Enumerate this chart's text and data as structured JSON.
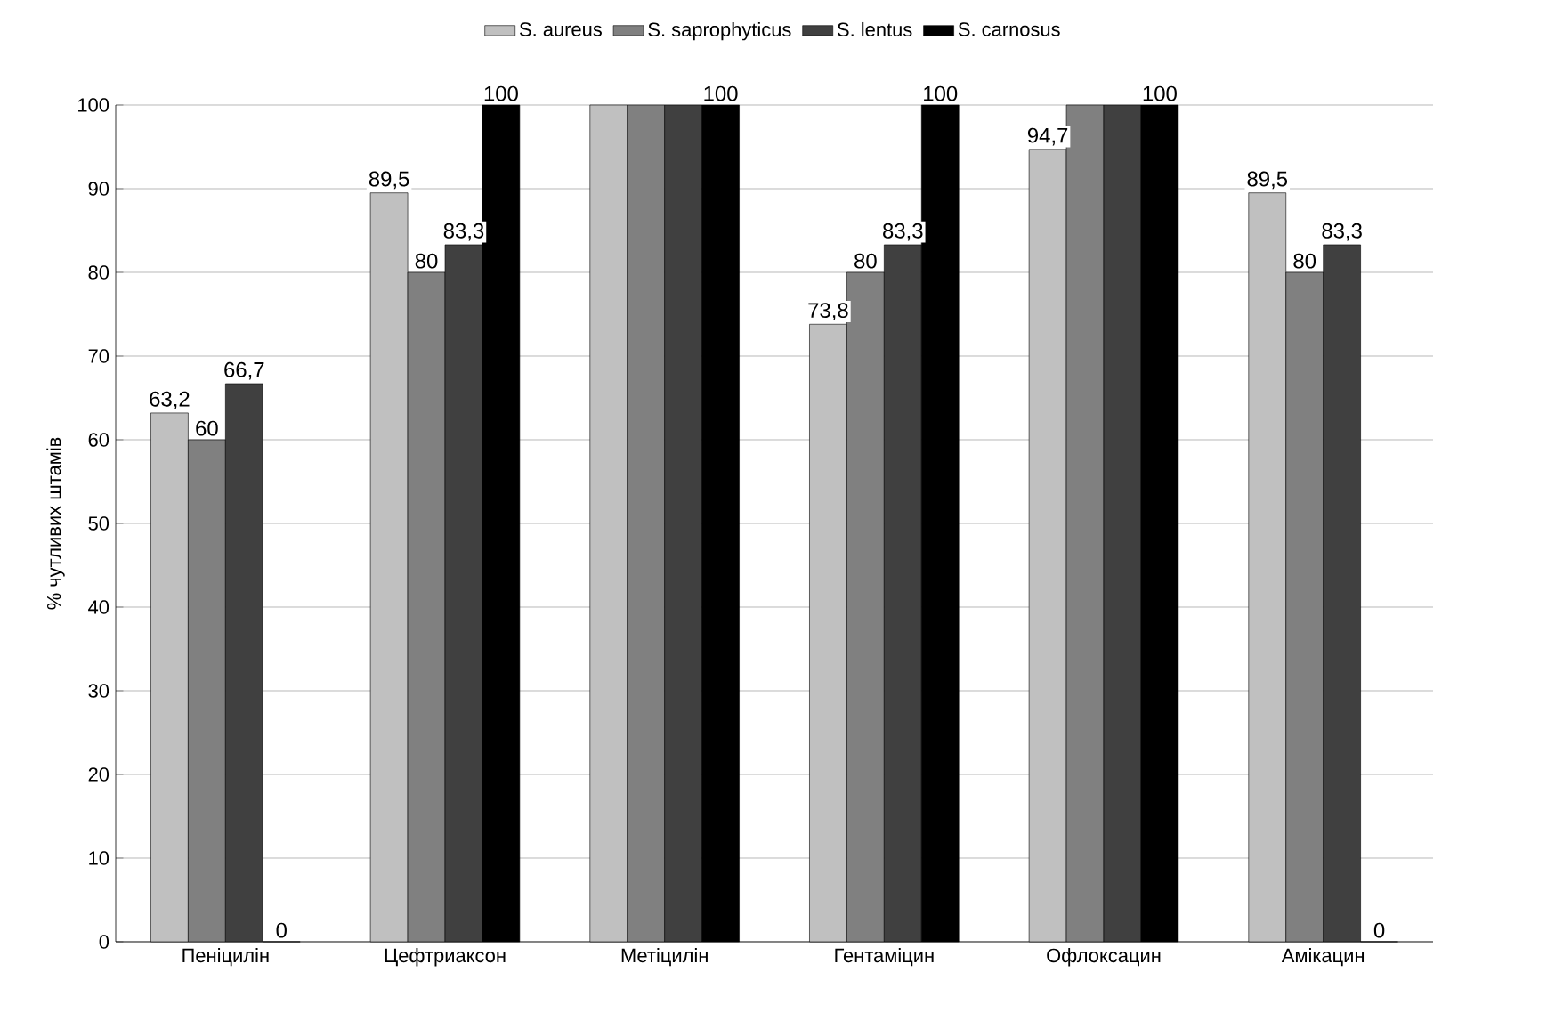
{
  "chart_data": {
    "type": "bar",
    "ylabel": "% чутливих штамів",
    "categories": [
      "Пеніцилін",
      "Цефтриаксон",
      "Метіцилін",
      "Гентаміцин",
      "Офлоксацин",
      "Амікацин"
    ],
    "series": [
      {
        "name": "S. aureus",
        "color": "#c0c0c0",
        "values": [
          63.2,
          89.5,
          100,
          73.8,
          94.7,
          89.5
        ],
        "value_labels": [
          "63,2",
          "89,5",
          null,
          "73,8",
          "94,7",
          "89,5"
        ]
      },
      {
        "name": "S. saprophyticus",
        "color": "#808080",
        "values": [
          60,
          80,
          100,
          80,
          100,
          80
        ],
        "value_labels": [
          "60",
          "80",
          null,
          "80",
          null,
          "80"
        ]
      },
      {
        "name": "S. lentus",
        "color": "#404040",
        "values": [
          66.7,
          83.3,
          100,
          83.3,
          100,
          83.3
        ],
        "value_labels": [
          "66,7",
          "83,3",
          null,
          "83,3",
          null,
          "83,3"
        ]
      },
      {
        "name": "S. carnosus",
        "color": "#000000",
        "values": [
          0,
          100,
          100,
          100,
          100,
          0
        ],
        "value_labels": [
          "0",
          "100",
          "100",
          "100",
          "100",
          "0"
        ]
      }
    ],
    "ylim": [
      0,
      100
    ],
    "yticks": [
      0,
      10,
      20,
      30,
      40,
      50,
      60,
      70,
      80,
      90,
      100
    ],
    "grid": "y",
    "legend": "top"
  }
}
